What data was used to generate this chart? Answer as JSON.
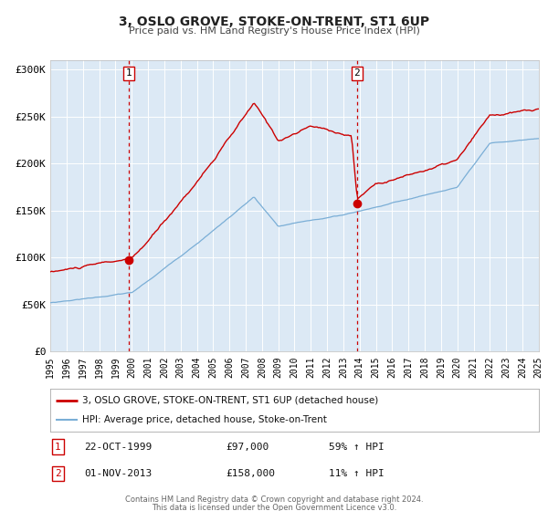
{
  "title": "3, OSLO GROVE, STOKE-ON-TRENT, ST1 6UP",
  "subtitle": "Price paid vs. HM Land Registry's House Price Index (HPI)",
  "red_label": "3, OSLO GROVE, STOKE-ON-TRENT, ST1 6UP (detached house)",
  "blue_label": "HPI: Average price, detached house, Stoke-on-Trent",
  "annotation1_date": "22-OCT-1999",
  "annotation1_price": "£97,000",
  "annotation1_hpi": "59% ↑ HPI",
  "annotation2_date": "01-NOV-2013",
  "annotation2_price": "£158,000",
  "annotation2_hpi": "11% ↑ HPI",
  "sale1_year": 1999.8,
  "sale1_price": 97000,
  "sale2_year": 2013.83,
  "sale2_price": 158000,
  "xmin": 1995,
  "xmax": 2025,
  "ymin": 0,
  "ymax": 310000,
  "yticks": [
    0,
    50000,
    100000,
    150000,
    200000,
    250000,
    300000
  ],
  "ytick_labels": [
    "£0",
    "£50K",
    "£100K",
    "£150K",
    "£200K",
    "£250K",
    "£300K"
  ],
  "xticks": [
    1995,
    1996,
    1997,
    1998,
    1999,
    2000,
    2001,
    2002,
    2003,
    2004,
    2005,
    2006,
    2007,
    2008,
    2009,
    2010,
    2011,
    2012,
    2013,
    2014,
    2015,
    2016,
    2017,
    2018,
    2019,
    2020,
    2021,
    2022,
    2023,
    2024,
    2025
  ],
  "background_color": "#ffffff",
  "plot_bg_color": "#dce9f5",
  "grid_color": "#ffffff",
  "red_color": "#cc0000",
  "blue_color": "#7aaed6",
  "vline_color": "#cc0000",
  "footnote1": "Contains HM Land Registry data © Crown copyright and database right 2024.",
  "footnote2": "This data is licensed under the Open Government Licence v3.0."
}
